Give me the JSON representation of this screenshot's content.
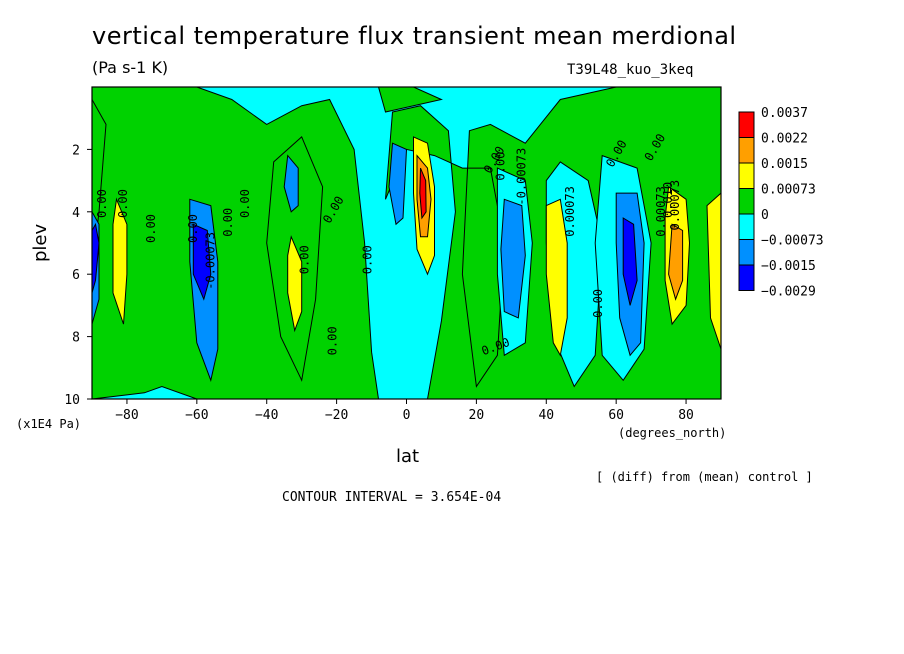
{
  "chart_data": {
    "type": "heatmap",
    "title": "vertical temperature flux transient mean merdional",
    "units": "(Pa s-1 K)",
    "run_label": "T39L48_kuo_3keq",
    "xlabel": "lat",
    "ylabel": "plev",
    "x_unit": "(degrees_north)",
    "y_unit": "(x1E4 Pa)",
    "xlim": [
      -90,
      90
    ],
    "ylim": [
      10,
      0
    ],
    "xticks": [
      "-80",
      "-60",
      "-40",
      "-20",
      "0",
      "20",
      "40",
      "60",
      "80"
    ],
    "yticks": [
      "2",
      "4",
      "6",
      "8",
      "10"
    ],
    "color_levels": [
      "0.0037",
      "0.0022",
      "0.0015",
      "0.00073",
      "0",
      "-0.00073",
      "-0.0015",
      "-0.0029"
    ],
    "colors": [
      "#ff0000",
      "#ff9f00",
      "#ffff00",
      "#00d200",
      "#00ffff",
      "#0090ff",
      "#0000ff"
    ],
    "contour_labels": [
      "0.00",
      "0.00",
      "0.00",
      "0.00",
      "0.00",
      "0.00",
      "0.00",
      "0.00",
      "0.00",
      "0.00",
      "0.00",
      "0.00",
      "0.00",
      "0.00",
      "0.00",
      "0.00",
      "-0.00073",
      "-0.00073",
      "0.00073",
      "0.00073",
      "0.00073",
      "0.010"
    ],
    "footer_note": "[ (diff) from (mean) control ]",
    "contour_interval": "CONTOUR INTERVAL = 3.654E-04"
  }
}
